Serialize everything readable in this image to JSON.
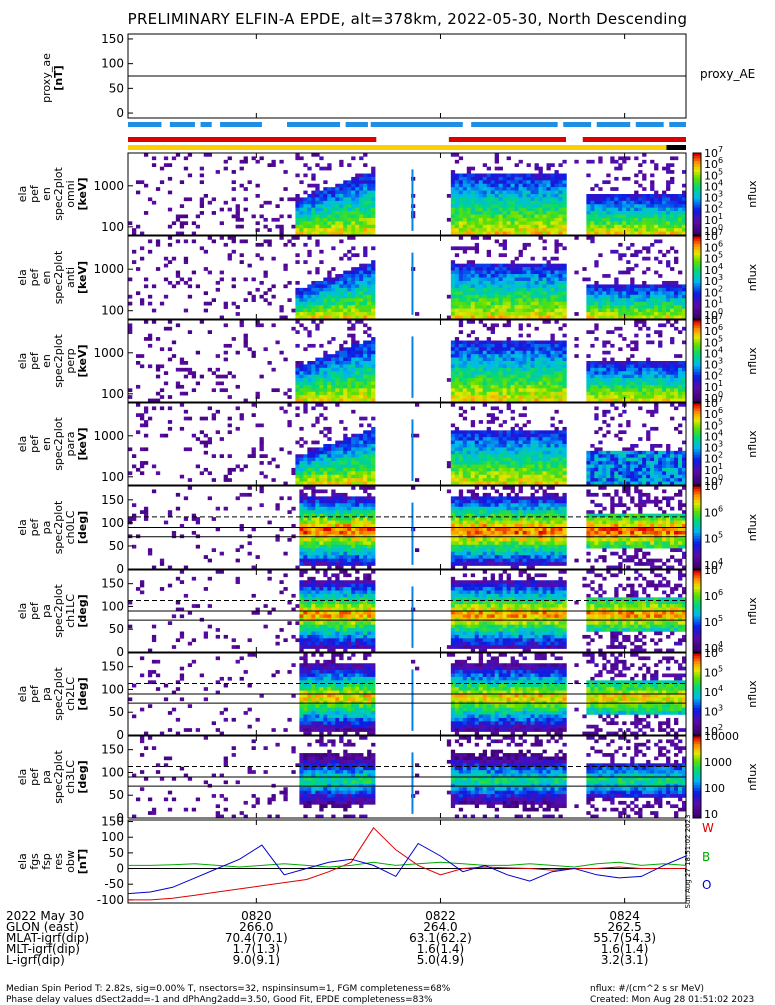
{
  "title": "PRELIMINARY ELFIN-A EPDE, alt=378km, 2022-05-30, North Descending",
  "colors": {
    "red_bar": "#dd0000",
    "blue_bar": "#1e8fe6",
    "yellow_bar": "#ffd000",
    "trace_W": "#dd0000",
    "trace_B": "#00aa00",
    "trace_O": "#0000cc"
  },
  "time_axis": {
    "ticks": [
      "0820",
      "0822",
      "0824"
    ]
  },
  "panels": {
    "proxy_ae": {
      "ylabel": [
        "proxy_ae",
        "[nT]"
      ],
      "yticks": [
        "150",
        "100",
        "50",
        "0"
      ],
      "legend": "proxy_AE",
      "value": 75
    },
    "energy": [
      {
        "ylabel": [
          "ela",
          "pef",
          "en",
          "spec2plot",
          "omni",
          "[keV]"
        ],
        "yticks": [
          "1000",
          "100"
        ],
        "cbar_label": "nflux",
        "cbar_ticks": [
          "10",
          "10",
          "10",
          "10",
          "10",
          "10",
          "10",
          "10"
        ],
        "cbar_exps": [
          "7",
          "6",
          "5",
          "4",
          "3",
          "2",
          "1",
          "0"
        ]
      },
      {
        "ylabel": [
          "ela",
          "pef",
          "en",
          "spec2plot",
          "anti",
          "[keV]"
        ],
        "yticks": [
          "1000",
          "100"
        ],
        "cbar_label": "nflux",
        "cbar_ticks": [
          "10",
          "10",
          "10",
          "10",
          "10",
          "10",
          "10",
          "10"
        ],
        "cbar_exps": [
          "7",
          "6",
          "5",
          "4",
          "3",
          "2",
          "1",
          "0"
        ]
      },
      {
        "ylabel": [
          "ela",
          "pef",
          "en",
          "spec2plot",
          "perp",
          "[keV]"
        ],
        "yticks": [
          "1000",
          "100"
        ],
        "cbar_label": "nflux",
        "cbar_ticks": [
          "10",
          "10",
          "10",
          "10",
          "10",
          "10",
          "10",
          "10"
        ],
        "cbar_exps": [
          "7",
          "6",
          "5",
          "4",
          "3",
          "2",
          "1",
          "0"
        ]
      },
      {
        "ylabel": [
          "ela",
          "pef",
          "en",
          "spec2plot",
          "para",
          "[keV]"
        ],
        "yticks": [
          "1000",
          "100"
        ],
        "cbar_label": "nflux",
        "cbar_ticks": [
          "10",
          "10",
          "10",
          "10",
          "10",
          "10",
          "10",
          "10"
        ],
        "cbar_exps": [
          "7",
          "6",
          "5",
          "4",
          "3",
          "2",
          "1",
          "0"
        ]
      }
    ],
    "pitch": [
      {
        "ylabel": [
          "ela",
          "pef",
          "pa",
          "spec2plot",
          "ch0LC",
          "[deg]"
        ],
        "yticks": [
          "150",
          "100",
          "50",
          "0"
        ],
        "cbar_label": "nflux",
        "cbar_ticks": [
          "10",
          "10",
          "10",
          "10"
        ],
        "cbar_exps": [
          "7",
          "6",
          "5",
          "4"
        ]
      },
      {
        "ylabel": [
          "ela",
          "pef",
          "pa",
          "spec2plot",
          "ch1LC",
          "[deg]"
        ],
        "yticks": [
          "150",
          "100",
          "50",
          "0"
        ],
        "cbar_label": "nflux",
        "cbar_ticks": [
          "10",
          "10",
          "10",
          "10"
        ],
        "cbar_exps": [
          "7",
          "6",
          "5",
          "4"
        ]
      },
      {
        "ylabel": [
          "ela",
          "pef",
          "pa",
          "spec2plot",
          "ch2LC",
          "[deg]"
        ],
        "yticks": [
          "150",
          "100",
          "50",
          "0"
        ],
        "cbar_label": "nflux",
        "cbar_ticks": [
          "10",
          "10",
          "10",
          "10",
          "10"
        ],
        "cbar_exps": [
          "6",
          "5",
          "4",
          "3",
          "2"
        ]
      },
      {
        "ylabel": [
          "ela",
          "pef",
          "pa",
          "spec2plot",
          "ch3LC",
          "[deg]"
        ],
        "yticks": [
          "150",
          "100",
          "50",
          "0"
        ],
        "cbar_label": "nflux",
        "cbar_ticks": [
          "10000",
          "1000",
          "100",
          "10"
        ],
        "cbar_exps": [
          "",
          "",
          "",
          ""
        ]
      }
    ],
    "fgs": {
      "ylabel": [
        "ela",
        "fgs",
        "fsp",
        "res",
        "obw",
        "[nT]"
      ],
      "yticks": [
        "150",
        "100",
        "50",
        "0",
        "-50",
        "-100"
      ],
      "legend": [
        "W",
        "B",
        "O"
      ],
      "side_stamp": "Sun Aug 27 18:51:02 2023"
    }
  },
  "chart_data": {
    "type": "heatmap",
    "x_time_ticks": [
      "0820",
      "0822",
      "0824"
    ],
    "proxy_ae_nT": 75,
    "fgs_traces": [
      {
        "name": "W",
        "values": [
          -100,
          -100,
          -95,
          -85,
          -75,
          -65,
          -55,
          -45,
          -35,
          -10,
          20,
          130,
          60,
          10,
          -20,
          0,
          5,
          2,
          0,
          -5,
          0,
          0,
          5,
          0,
          0,
          0
        ]
      },
      {
        "name": "B",
        "values": [
          10,
          10,
          12,
          15,
          10,
          5,
          10,
          15,
          10,
          5,
          10,
          20,
          10,
          15,
          20,
          15,
          10,
          10,
          15,
          10,
          5,
          15,
          20,
          10,
          15,
          10
        ]
      },
      {
        "name": "O",
        "values": [
          -80,
          -75,
          -60,
          -30,
          0,
          30,
          75,
          -20,
          0,
          20,
          30,
          10,
          -25,
          80,
          40,
          -10,
          10,
          -20,
          -40,
          -10,
          0,
          -20,
          -30,
          -25,
          10,
          40
        ]
      }
    ],
    "footer_labels": {
      "rows": [
        {
          "label": "2022 May 30",
          "values": [
            "0820",
            "0822",
            "0824"
          ]
        },
        {
          "label": "GLON (east)",
          "values": [
            "266.0",
            "264.0",
            "262.5"
          ]
        },
        {
          "label": "MLAT-igrf(dip)",
          "values": [
            "70.4(70.1)",
            "63.1(62.2)",
            "55.7(54.3)"
          ]
        },
        {
          "label": "MLT-igrf(dip)",
          "values": [
            "1.7(1.3)",
            "1.6(1.4)",
            "1.6(1.4)"
          ]
        },
        {
          "label": "L-igrf(dip)",
          "values": [
            "9.0(9.1)",
            "5.0(4.9)",
            "3.2(3.1)"
          ]
        }
      ]
    }
  },
  "footer": {
    "line1_left": "Median Spin Period T: 2.82s, sig=0.00% T, nsectors=32, nspinsinsum=1, FGM completeness=68%",
    "line2_left": "Phase delay values dSect2add=-1 and dPhAng2add=3.50, Good Fit, EPDE completeness=83%",
    "line1_right": "nflux: #/(cm^2 s sr MeV)",
    "line2_right": "Created: Mon Aug 28 01:51:02 2023"
  }
}
